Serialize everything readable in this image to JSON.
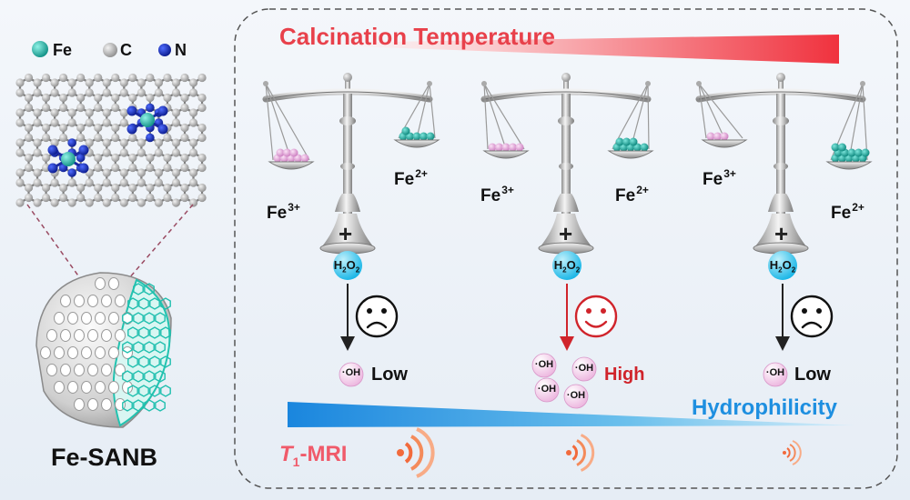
{
  "legend": {
    "fe": "Fe",
    "c": "C",
    "n": "N"
  },
  "material_label": "Fe-SANB",
  "calcination_label": "Calcination Temperature",
  "hydrophilicity_label": "Hydrophilicity",
  "mri_label": {
    "prefix": "T",
    "subscript": "1",
    "suffix": "-MRI"
  },
  "reagent": {
    "base": "H",
    "sub1": "2",
    "mid": "O",
    "sub2": "2"
  },
  "radical_label": "·OH",
  "plus_sign": "+",
  "ions": {
    "fe3": "Fe",
    "fe3_charge": "3+",
    "fe2": "Fe",
    "fe2_charge": "2+"
  },
  "cases": [
    {
      "result": "Low",
      "mood": "sad"
    },
    {
      "result": "High",
      "mood": "happy"
    },
    {
      "result": "Low",
      "mood": "sad"
    }
  ],
  "colors": {
    "fe_atom": "#1fb8a8",
    "c_atom": "#b4b4b4",
    "n_atom": "#1028b8",
    "fe3_ball": "#e8a6dc",
    "fe2_ball": "#17aea2",
    "calcination": "#f03a44",
    "hydrophilicity": "#1e8fe0",
    "high": "#d0242b",
    "h2o2": "#1ec3ea",
    "mri": "#f26a3c"
  }
}
